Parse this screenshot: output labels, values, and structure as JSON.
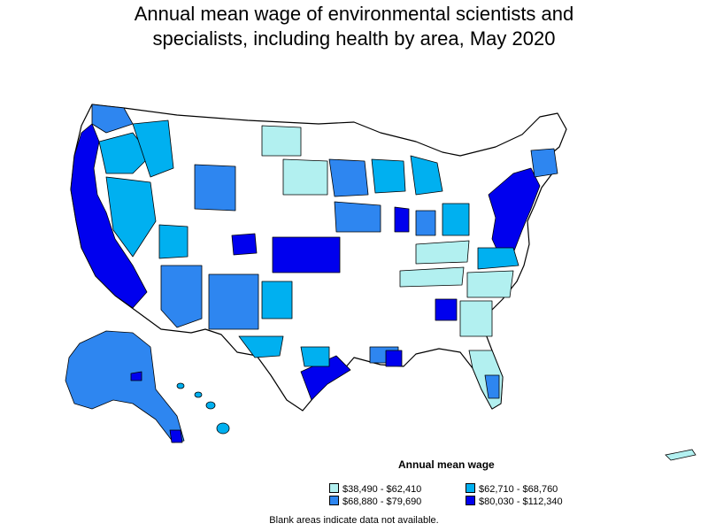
{
  "title_line1": "Annual mean wage of environmental scientists and",
  "title_line2": "specialists, including health by area, May 2020",
  "legend": {
    "title": "Annual mean wage",
    "items": [
      {
        "label": "$38,490 - $62,410",
        "color": "#b2f0f0"
      },
      {
        "label": "$62,710 - $68,760",
        "color": "#00b0f0"
      },
      {
        "label": "$68,880 - $79,690",
        "color": "#2e86f0"
      },
      {
        "label": "$80,030 - $112,340",
        "color": "#0000ee"
      }
    ]
  },
  "note": "Blank areas indicate data not available."
}
